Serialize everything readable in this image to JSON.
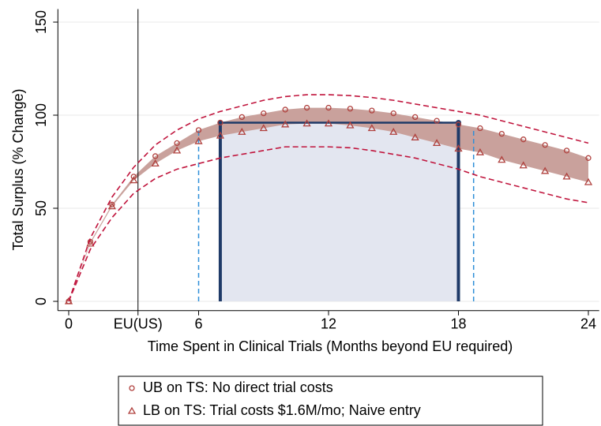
{
  "chart_data": {
    "type": "line",
    "y_label": "Total Surplus (% Change)",
    "x_label": "Time Spent in Clinical Trials (Months beyond EU required)",
    "x": [
      0,
      1,
      2,
      3,
      4,
      5,
      6,
      7,
      8,
      9,
      10,
      11,
      12,
      13,
      14,
      15,
      16,
      17,
      18,
      19,
      20,
      21,
      22,
      23,
      24
    ],
    "xlim": [
      -0.5,
      24.5
    ],
    "xticks": [
      0,
      {
        "value": 3.2,
        "label": "EU(US)"
      },
      6,
      12,
      18,
      24
    ],
    "ylim": [
      -5,
      157
    ],
    "yticks": [
      0,
      50,
      100,
      150
    ],
    "grid": true,
    "band_color": "#c9a19c",
    "series": [
      {
        "name": "UB on TS: No direct trial costs",
        "color": "#b0413e",
        "marker": "circle",
        "values": [
          0,
          32,
          52,
          67,
          78,
          85,
          92,
          96,
          99,
          101,
          103,
          104,
          104,
          103.5,
          102.5,
          101,
          99,
          97,
          95,
          93,
          90,
          87,
          84,
          81,
          77
        ]
      },
      {
        "name": "LB on TS: Trial costs $1.6M/mo; Naive entry",
        "color": "#b0413e",
        "marker": "triangle",
        "values": [
          0,
          31,
          51,
          65,
          74,
          81,
          86,
          89,
          91,
          93,
          95,
          95.5,
          95.5,
          94.5,
          93,
          91,
          88,
          85,
          82,
          80,
          76,
          73,
          70,
          67,
          64
        ]
      },
      {
        "color": "#c0143c",
        "dash": true,
        "values": [
          0,
          34,
          56,
          72,
          84,
          92,
          98,
          102,
          105,
          108,
          110,
          111,
          111,
          110.5,
          109.5,
          108,
          106,
          104,
          102,
          100,
          97,
          94,
          91,
          88,
          85
        ]
      },
      {
        "color": "#c0143c",
        "dash": true,
        "values": [
          0,
          28,
          45,
          58,
          66,
          71,
          74,
          77,
          79,
          81,
          83,
          83,
          83,
          82.5,
          81,
          79,
          77,
          74,
          71,
          67,
          64,
          61,
          58,
          55,
          53
        ]
      }
    ],
    "ref_line_x": 3.2,
    "window": {
      "x": [
        7,
        18
      ],
      "top": 96,
      "fill": "#e3e6f0",
      "color": "#1f3a68"
    },
    "ci_lines": {
      "x": [
        6,
        18.7
      ],
      "top": 92,
      "color": "#2e8fd8"
    }
  }
}
